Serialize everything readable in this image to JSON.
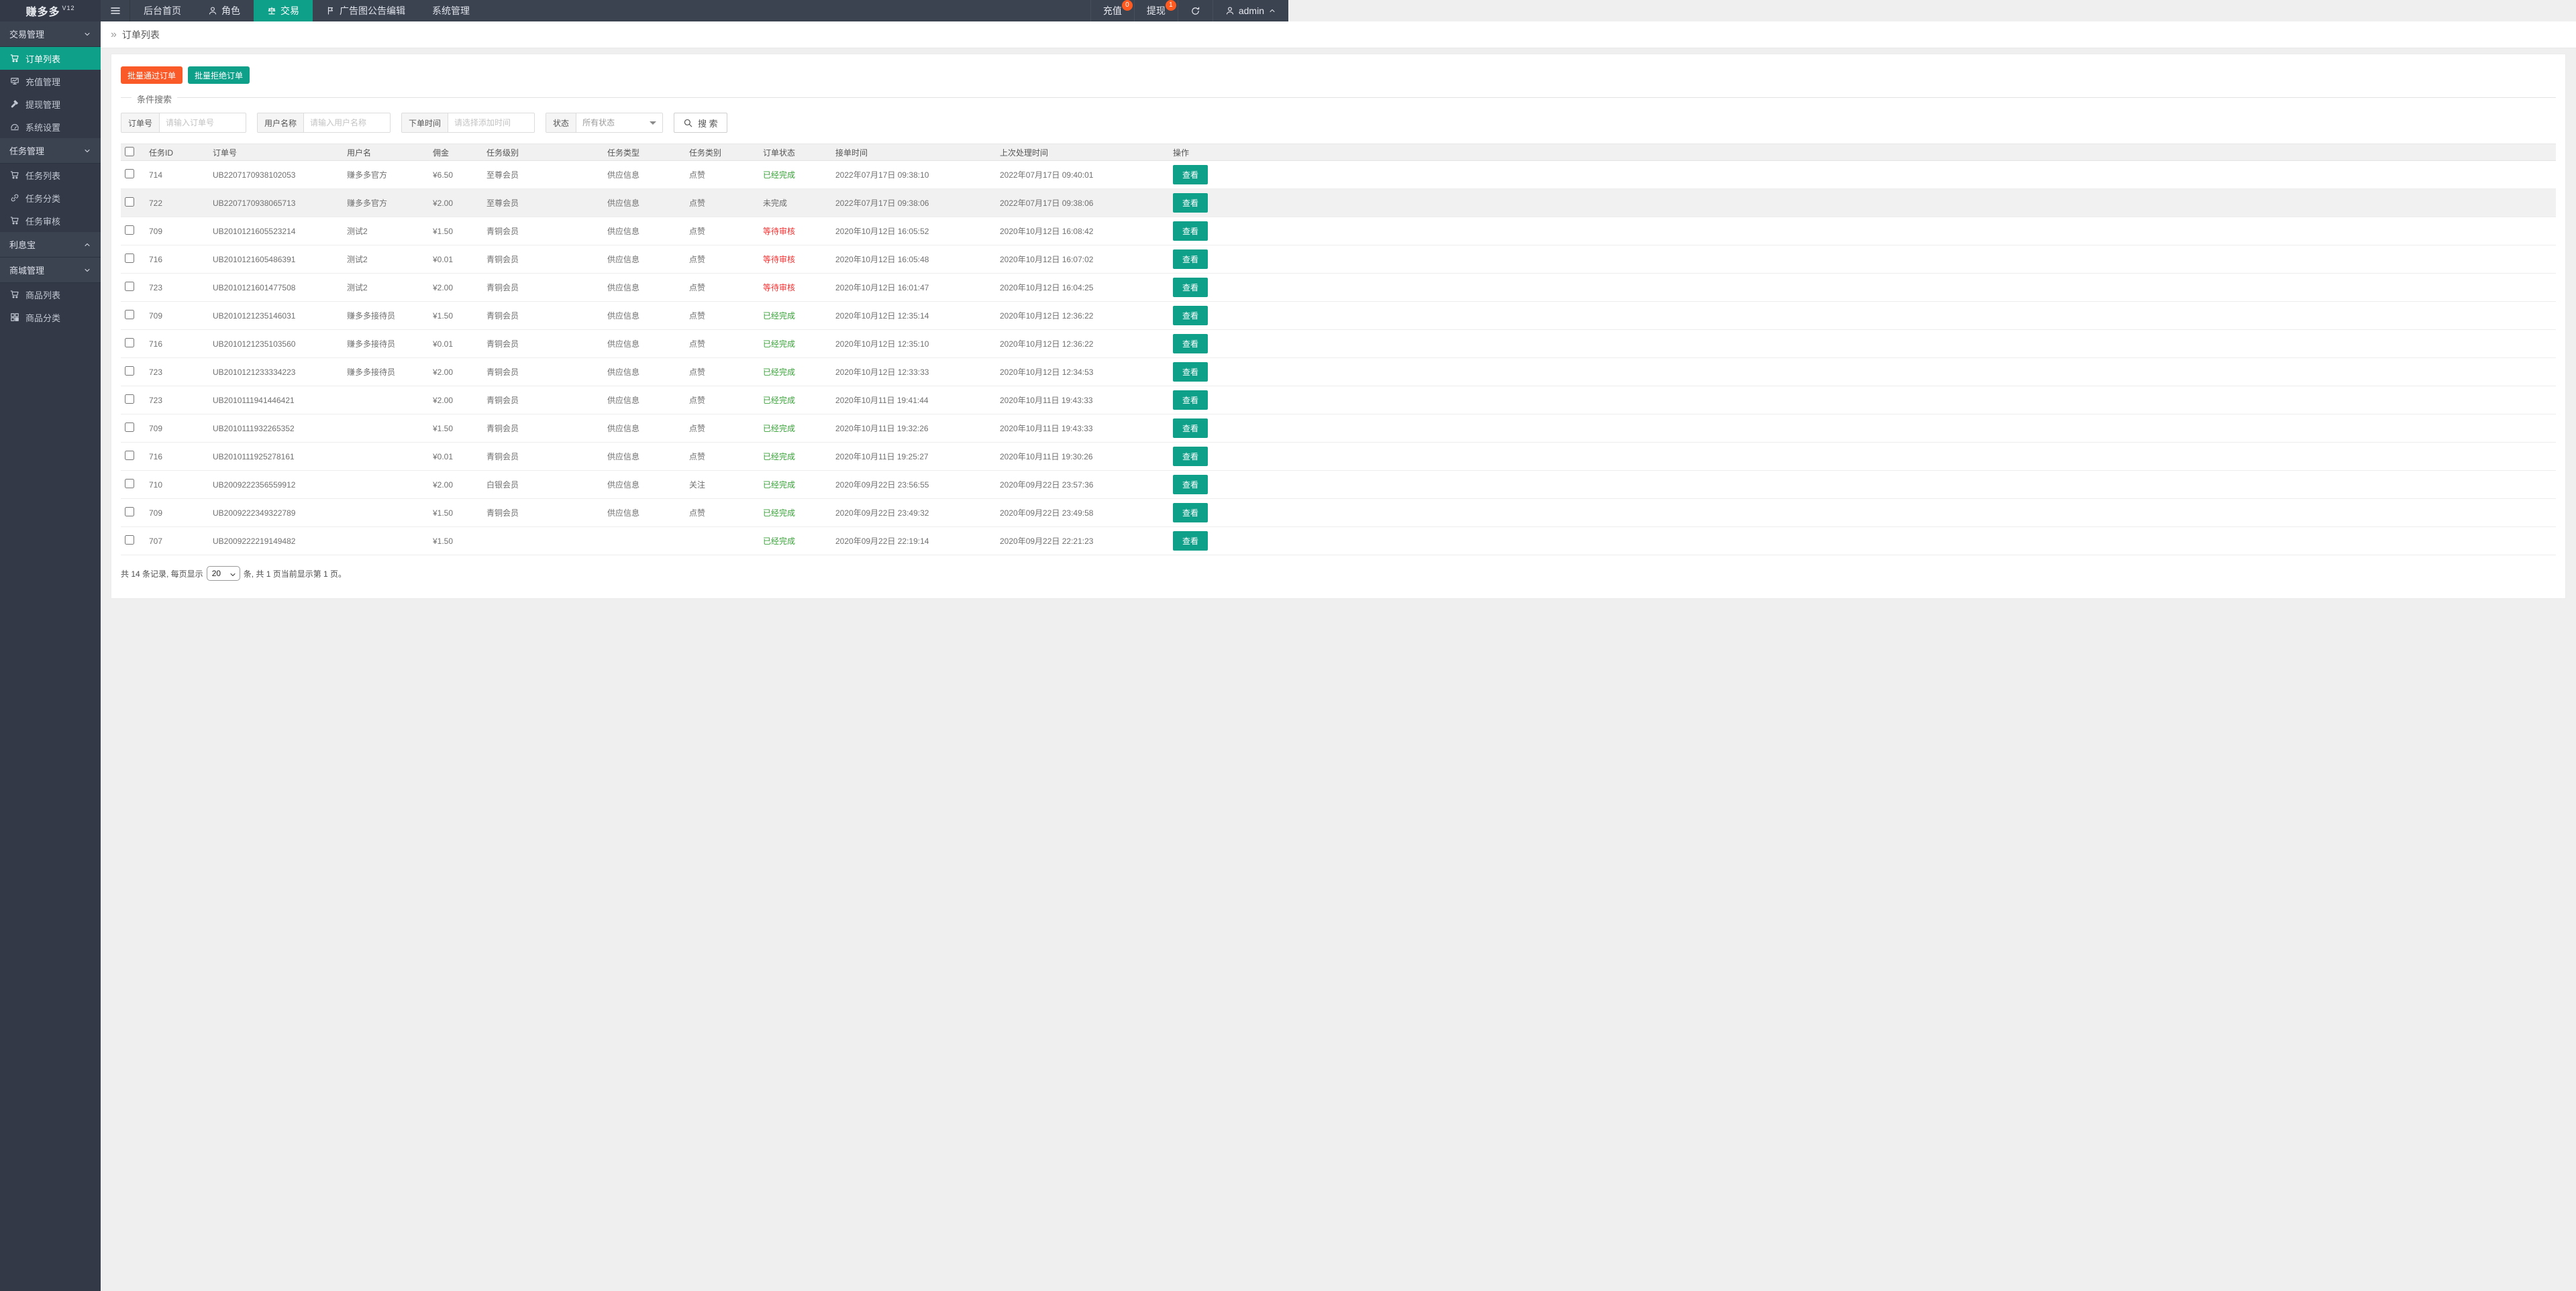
{
  "app": {
    "brand": "赚多多",
    "brand_version": "V12"
  },
  "colors": {
    "accent_teal": "#0fa08a",
    "button_orange": "#f95a28",
    "badge_orange": "#ff5a1f",
    "status_green": "#3aa33a",
    "status_red": "#f43030",
    "topbar_dark": "#3b4250",
    "sidebar_dark": "#333946"
  },
  "topnav": {
    "items": [
      {
        "label": "后台首页",
        "icon": "",
        "active": false
      },
      {
        "label": "角色",
        "icon": "person",
        "active": false
      },
      {
        "label": "交易",
        "icon": "scales",
        "active": true
      },
      {
        "label": "广告图公告编辑",
        "icon": "flag",
        "active": false
      },
      {
        "label": "系统管理",
        "icon": "",
        "active": false
      }
    ],
    "right": {
      "recharge": {
        "label": "充值",
        "badge": "0"
      },
      "withdraw": {
        "label": "提现",
        "badge": "1"
      },
      "user": {
        "name": "admin"
      }
    }
  },
  "sidebar": {
    "groups": [
      {
        "label": "交易管理",
        "chevron": "down",
        "items": [
          {
            "label": "订单列表",
            "icon": "cart",
            "active": true
          },
          {
            "label": "充值管理",
            "icon": "board",
            "active": false
          },
          {
            "label": "提现管理",
            "icon": "hammer",
            "active": false
          },
          {
            "label": "系统设置",
            "icon": "gauge",
            "active": false
          }
        ]
      },
      {
        "label": "任务管理",
        "chevron": "down",
        "items": [
          {
            "label": "任务列表",
            "icon": "cart",
            "active": false
          },
          {
            "label": "任务分类",
            "icon": "link",
            "active": false
          },
          {
            "label": "任务审核",
            "icon": "cart",
            "active": false
          }
        ]
      },
      {
        "label": "利息宝",
        "chevron": "up",
        "items": []
      },
      {
        "label": "商城管理",
        "chevron": "down",
        "items": [
          {
            "label": "商品列表",
            "icon": "cart",
            "active": false
          },
          {
            "label": "商品分类",
            "icon": "grid",
            "active": false
          }
        ]
      }
    ]
  },
  "breadcrumb": {
    "separator": "»",
    "label": "订单列表"
  },
  "toolbar": {
    "approve": "批量通过订单",
    "reject": "批量拒绝订单"
  },
  "filters": {
    "legend": "条件搜索",
    "order_no": {
      "label": "订单号",
      "placeholder": "请输入订单号"
    },
    "user_name": {
      "label": "用户名称",
      "placeholder": "请输入用户名称"
    },
    "order_time": {
      "label": "下单时间",
      "placeholder": "请选择添加时间"
    },
    "status": {
      "label": "状态",
      "value": "所有状态"
    },
    "search": "搜 索"
  },
  "table": {
    "headers": [
      "任务ID",
      "订单号",
      "用户名",
      "佣金",
      "任务级别",
      "任务类型",
      "任务类别",
      "订单状态",
      "接单时间",
      "上次处理时间",
      "操作"
    ],
    "view_label": "查看",
    "rows": [
      {
        "task_id": "714",
        "order_no": "UB2207170938102053",
        "user": "赚多多官方",
        "commission": "¥6.50",
        "level": "至尊会员",
        "type": "供应信息",
        "category": "点赞",
        "status": "已经完成",
        "status_color": "green",
        "accept_time": "2022年07月17日 09:38:10",
        "last_time": "2022年07月17日 09:40:01",
        "highlighted": false
      },
      {
        "task_id": "722",
        "order_no": "UB2207170938065713",
        "user": "赚多多官方",
        "commission": "¥2.00",
        "level": "至尊会员",
        "type": "供应信息",
        "category": "点赞",
        "status": "未完成",
        "status_color": "plain",
        "accept_time": "2022年07月17日 09:38:06",
        "last_time": "2022年07月17日 09:38:06",
        "highlighted": true
      },
      {
        "task_id": "709",
        "order_no": "UB2010121605523214",
        "user": "测试2",
        "commission": "¥1.50",
        "level": "青铜会员",
        "type": "供应信息",
        "category": "点赞",
        "status": "等待审核",
        "status_color": "red",
        "accept_time": "2020年10月12日 16:05:52",
        "last_time": "2020年10月12日 16:08:42",
        "highlighted": false
      },
      {
        "task_id": "716",
        "order_no": "UB2010121605486391",
        "user": "测试2",
        "commission": "¥0.01",
        "level": "青铜会员",
        "type": "供应信息",
        "category": "点赞",
        "status": "等待审核",
        "status_color": "red",
        "accept_time": "2020年10月12日 16:05:48",
        "last_time": "2020年10月12日 16:07:02",
        "highlighted": false
      },
      {
        "task_id": "723",
        "order_no": "UB2010121601477508",
        "user": "测试2",
        "commission": "¥2.00",
        "level": "青铜会员",
        "type": "供应信息",
        "category": "点赞",
        "status": "等待审核",
        "status_color": "red",
        "accept_time": "2020年10月12日 16:01:47",
        "last_time": "2020年10月12日 16:04:25",
        "highlighted": false
      },
      {
        "task_id": "709",
        "order_no": "UB2010121235146031",
        "user": "赚多多接待员",
        "commission": "¥1.50",
        "level": "青铜会员",
        "type": "供应信息",
        "category": "点赞",
        "status": "已经完成",
        "status_color": "green",
        "accept_time": "2020年10月12日 12:35:14",
        "last_time": "2020年10月12日 12:36:22",
        "highlighted": false
      },
      {
        "task_id": "716",
        "order_no": "UB2010121235103560",
        "user": "赚多多接待员",
        "commission": "¥0.01",
        "level": "青铜会员",
        "type": "供应信息",
        "category": "点赞",
        "status": "已经完成",
        "status_color": "green",
        "accept_time": "2020年10月12日 12:35:10",
        "last_time": "2020年10月12日 12:36:22",
        "highlighted": false
      },
      {
        "task_id": "723",
        "order_no": "UB2010121233334223",
        "user": "赚多多接待员",
        "commission": "¥2.00",
        "level": "青铜会员",
        "type": "供应信息",
        "category": "点赞",
        "status": "已经完成",
        "status_color": "green",
        "accept_time": "2020年10月12日 12:33:33",
        "last_time": "2020年10月12日 12:34:53",
        "highlighted": false
      },
      {
        "task_id": "723",
        "order_no": "UB2010111941446421",
        "user": "",
        "commission": "¥2.00",
        "level": "青铜会员",
        "type": "供应信息",
        "category": "点赞",
        "status": "已经完成",
        "status_color": "green",
        "accept_time": "2020年10月11日 19:41:44",
        "last_time": "2020年10月11日 19:43:33",
        "highlighted": false
      },
      {
        "task_id": "709",
        "order_no": "UB2010111932265352",
        "user": "",
        "commission": "¥1.50",
        "level": "青铜会员",
        "type": "供应信息",
        "category": "点赞",
        "status": "已经完成",
        "status_color": "green",
        "accept_time": "2020年10月11日 19:32:26",
        "last_time": "2020年10月11日 19:43:33",
        "highlighted": false
      },
      {
        "task_id": "716",
        "order_no": "UB2010111925278161",
        "user": "",
        "commission": "¥0.01",
        "level": "青铜会员",
        "type": "供应信息",
        "category": "点赞",
        "status": "已经完成",
        "status_color": "green",
        "accept_time": "2020年10月11日 19:25:27",
        "last_time": "2020年10月11日 19:30:26",
        "highlighted": false
      },
      {
        "task_id": "710",
        "order_no": "UB2009222356559912",
        "user": "",
        "commission": "¥2.00",
        "level": "白银会员",
        "type": "供应信息",
        "category": "关注",
        "status": "已经完成",
        "status_color": "green",
        "accept_time": "2020年09月22日 23:56:55",
        "last_time": "2020年09月22日 23:57:36",
        "highlighted": false
      },
      {
        "task_id": "709",
        "order_no": "UB2009222349322789",
        "user": "",
        "commission": "¥1.50",
        "level": "青铜会员",
        "type": "供应信息",
        "category": "点赞",
        "status": "已经完成",
        "status_color": "green",
        "accept_time": "2020年09月22日 23:49:32",
        "last_time": "2020年09月22日 23:49:58",
        "highlighted": false
      },
      {
        "task_id": "707",
        "order_no": "UB2009222219149482",
        "user": "",
        "commission": "¥1.50",
        "level": "",
        "type": "",
        "category": "",
        "status": "已经完成",
        "status_color": "green",
        "accept_time": "2020年09月22日 22:19:14",
        "last_time": "2020年09月22日 22:21:23",
        "highlighted": false
      }
    ]
  },
  "pagination": {
    "prefix": "共 14 条记录, 每页显示",
    "page_size": "20",
    "suffix": "条, 共 1 页当前显示第 1 页。"
  }
}
